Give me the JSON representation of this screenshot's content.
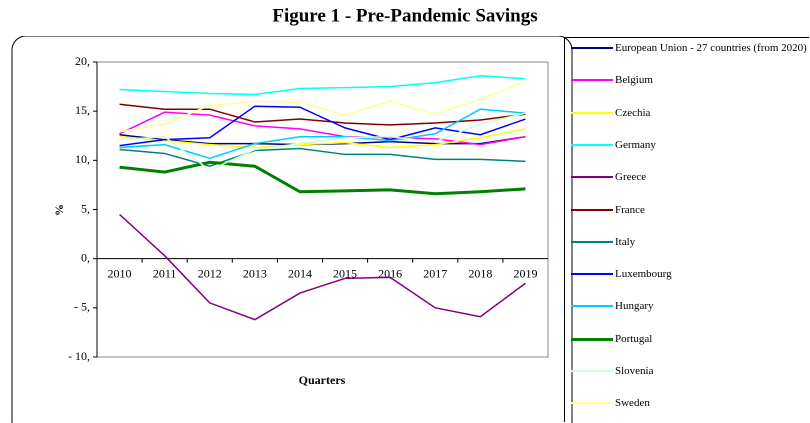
{
  "chart_data": {
    "type": "line",
    "title": "Figure 1 - Pre-Pandemic Savings",
    "xlabel": "Quarters",
    "ylabel": "%",
    "categories": [
      "2010",
      "2011",
      "2012",
      "2013",
      "2014",
      "2015",
      "2016",
      "2017",
      "2018",
      "2019"
    ],
    "ylim": [
      -10,
      20
    ],
    "yticks": [
      {
        "value": -10,
        "label": "- 10,"
      },
      {
        "value": -5,
        "label": "- 5,"
      },
      {
        "value": 0,
        "label": "0,"
      },
      {
        "value": 5,
        "label": "5,"
      },
      {
        "value": 10,
        "label": "10,"
      },
      {
        "value": 15,
        "label": "15,"
      },
      {
        "value": 20,
        "label": "20,"
      }
    ],
    "legend": "right",
    "series": [
      {
        "name": "European Union - 27 countries (from 2020)",
        "color": "#000080",
        "values": [
          12.6,
          12.1,
          11.7,
          11.7,
          11.6,
          11.7,
          11.9,
          11.7,
          11.7,
          12.4
        ]
      },
      {
        "name": "Belgium",
        "color": "#ff00ff",
        "values": [
          12.7,
          14.9,
          14.6,
          13.5,
          13.2,
          12.4,
          12.3,
          12.2,
          11.6,
          12.4
        ]
      },
      {
        "name": "Czechia",
        "color": "#ffff00",
        "values": [
          12.4,
          12.0,
          11.6,
          11.3,
          11.6,
          11.8,
          11.3,
          11.6,
          12.3,
          13.2
        ]
      },
      {
        "name": "Germany",
        "color": "#00ffff",
        "values": [
          17.2,
          17.0,
          16.8,
          16.7,
          17.3,
          17.4,
          17.5,
          17.9,
          18.6,
          18.3
        ]
      },
      {
        "name": "Greece",
        "color": "#800080",
        "values": [
          4.5,
          0.3,
          -4.5,
          -6.2,
          -3.5,
          -2.0,
          -1.9,
          -5.0,
          -5.9,
          -2.5
        ]
      },
      {
        "name": "France",
        "color": "#800000",
        "values": [
          15.7,
          15.2,
          15.2,
          13.9,
          14.2,
          13.8,
          13.6,
          13.8,
          14.1,
          14.7
        ]
      },
      {
        "name": "Italy",
        "color": "#008080",
        "values": [
          11.1,
          10.7,
          9.4,
          11.0,
          11.2,
          10.6,
          10.6,
          10.1,
          10.1,
          9.9
        ]
      },
      {
        "name": "Luxembourg",
        "color": "#0000ff",
        "values": [
          11.5,
          12.1,
          12.3,
          15.5,
          15.4,
          13.3,
          12.1,
          13.3,
          12.6,
          14.2
        ]
      },
      {
        "name": "Hungary",
        "color": "#00ccff",
        "values": [
          11.3,
          11.6,
          10.2,
          11.7,
          12.4,
          12.4,
          12.0,
          12.7,
          15.2,
          14.8
        ]
      },
      {
        "name": "Portugal",
        "color": "#008000",
        "width": 3,
        "values": [
          9.3,
          8.8,
          9.8,
          9.4,
          6.8,
          6.9,
          7.0,
          6.6,
          6.8,
          7.1
        ]
      },
      {
        "name": "Slovenia",
        "color": "#ccffcc",
        "values": [
          12.1,
          12.4,
          9.0,
          11.1,
          11.7,
          12.3,
          12.4,
          11.9,
          13.7,
          14.8
        ]
      },
      {
        "name": "Sweden",
        "color": "#ffff99",
        "values": [
          12.9,
          13.7,
          15.6,
          16.0,
          15.9,
          14.6,
          16.0,
          14.7,
          16.2,
          18.0
        ]
      }
    ]
  }
}
